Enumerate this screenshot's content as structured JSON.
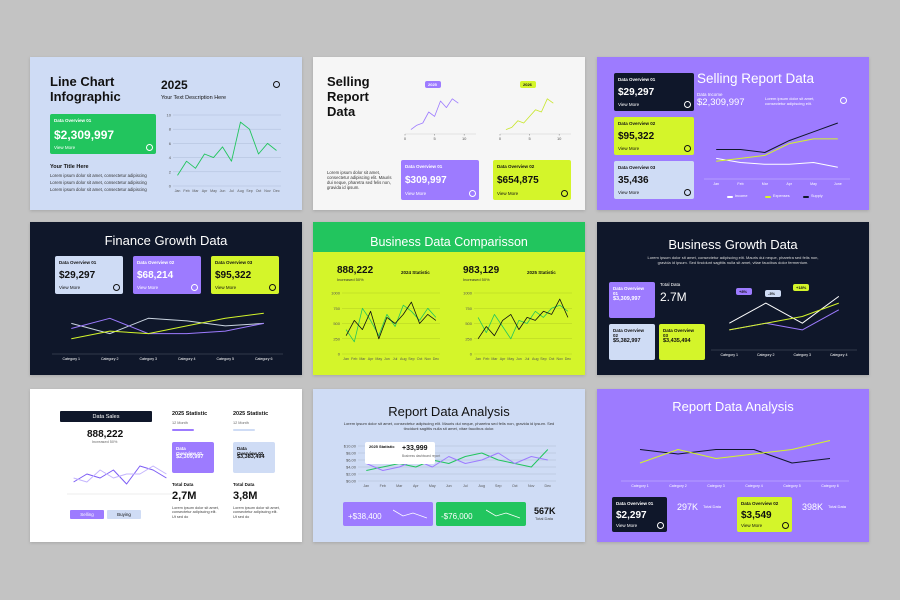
{
  "slides": [
    {
      "title": "Line Chart Infographic",
      "year": "2025",
      "description": "Your Text Description Here",
      "card": {
        "label": "Data Overview 01",
        "value": "$2,309,997",
        "link": "View More"
      },
      "subtitle": "Your Title Here",
      "bullets": [
        "Lorem ipsum dolor sit amet, consectetur adipiscing",
        "Lorem ipsum dolor sit amet, consectetur adipiscing",
        "Lorem ipsum dolor sit amet, consectetur adipiscing"
      ],
      "chart": {
        "type": "line",
        "categories": [
          "Jan",
          "Feb",
          "Mar",
          "Apr",
          "May",
          "Jun",
          "Jul",
          "Aug",
          "Sep",
          "Oct",
          "Nov",
          "Dec"
        ],
        "ylim": [
          0,
          10
        ],
        "yticks": [
          0,
          2,
          4,
          6,
          8,
          10
        ],
        "grid": true,
        "series": [
          {
            "color": "#22c55e",
            "values": [
              1.5,
              3.5,
              2.5,
              4.5,
              4,
              5.5,
              3.5,
              9,
              8,
              4.5,
              6,
              5
            ]
          }
        ]
      }
    },
    {
      "title": "Selling Report Data",
      "paragraph": "Lorem ipsum dolor sit amet, consectetur adipiscing elit. Mauris dui neque, pharetra sed felis non, gravida id ipsum.",
      "chart1": {
        "type": "line",
        "label": "2025",
        "x": [
          1,
          2,
          3,
          4,
          5,
          6,
          7,
          8,
          9
        ],
        "xlim": [
          0,
          12
        ],
        "xticks": [
          0,
          5,
          10
        ],
        "ylim": [
          0,
          10
        ],
        "series": [
          {
            "color": "#9d7bff",
            "values": [
              1,
              2,
              2.5,
              5,
              4,
              7.5,
              6,
              8,
              7
            ]
          }
        ]
      },
      "chart2": {
        "type": "line",
        "label": "2026",
        "x": [
          1,
          2,
          3,
          4,
          5,
          6,
          7,
          8,
          9
        ],
        "xlim": [
          0,
          12
        ],
        "xticks": [
          0,
          5,
          10
        ],
        "ylim": [
          0,
          10
        ],
        "series": [
          {
            "color": "#c8e62a",
            "values": [
              1,
              1.5,
              3,
              2.5,
              4,
              5.5,
              5,
              8,
              7
            ]
          }
        ]
      },
      "cards": [
        {
          "label": "Data Overview 01",
          "value": "$309,997",
          "link": "View More"
        },
        {
          "label": "Data Overview 02",
          "value": "$654,875",
          "link": "View More"
        }
      ]
    },
    {
      "cards": [
        {
          "label": "Data Overview 01",
          "value": "$29,297",
          "link": "View More"
        },
        {
          "label": "Data Overview 02",
          "value": "$95,322",
          "link": "View More"
        },
        {
          "label": "Data Overview 03",
          "value": "35,436",
          "link": "View More"
        }
      ],
      "title": "Selling Report Data",
      "income_label": "Data Income",
      "income": "$2,309,997",
      "paragraph": "Lorem ipsum dolor sit amet, consectetur adipiscing elit.",
      "chart": {
        "type": "line",
        "categories": [
          "Jan",
          "Feb",
          "Mar",
          "Apr",
          "May",
          "June"
        ],
        "ylim": [
          0,
          10
        ],
        "series": [
          {
            "name": "Income",
            "color": "#ffffff",
            "values": [
              3.5,
              2.8,
              2.5,
              2.5,
              2.8,
              2
            ]
          },
          {
            "name": "Expenses",
            "color": "#d4f52a",
            "values": [
              3,
              3.5,
              4,
              6,
              6.8,
              6.8
            ]
          },
          {
            "name": "Supply",
            "color": "#0f172a",
            "values": [
              5,
              5,
              4.5,
              6.5,
              8,
              9.5
            ]
          }
        ]
      }
    },
    {
      "title": "Finance Growth Data",
      "cards": [
        {
          "label": "Data Overview 01",
          "value": "$29,297",
          "link": "View More"
        },
        {
          "label": "Data Overview 02",
          "value": "$68,214",
          "link": "View More"
        },
        {
          "label": "Data Overview 03",
          "value": "$95,322",
          "link": "View More"
        }
      ],
      "chart": {
        "type": "line",
        "categories": [
          "Category 1",
          "Category 2",
          "Category 3",
          "Category 4",
          "Category 5",
          "Category 6"
        ],
        "ylim": [
          0,
          10
        ],
        "series": [
          {
            "color": "#cbd5e1",
            "values": [
              6,
              4,
              7,
              6.5,
              5.5,
              6
            ]
          },
          {
            "color": "#9d7bff",
            "values": [
              5,
              7,
              4,
              4,
              4.5,
              6
            ]
          },
          {
            "color": "#d4f52a",
            "values": [
              3,
              4.5,
              4,
              5.5,
              7,
              8
            ]
          }
        ]
      }
    },
    {
      "title": "Business Data Comparisson",
      "stats": [
        {
          "value": "888,222",
          "label": "2024 Statistic",
          "change": "Increased 50%"
        },
        {
          "value": "983,129",
          "label": "2025 Statistic",
          "change": "Increased 50%"
        }
      ],
      "chart1": {
        "type": "line",
        "categories": [
          "Jan",
          "Feb",
          "Mar",
          "Apr",
          "May",
          "Jun",
          "Jul",
          "Aug",
          "Sep",
          "Oct",
          "Nov",
          "Dec"
        ],
        "ylim": [
          0,
          1000
        ],
        "yticks": [
          0,
          250,
          500,
          750,
          1000
        ],
        "grid": true,
        "series": [
          {
            "color": "#22c55e",
            "values": [
              400,
              200,
              750,
              550,
              300,
              650,
              450,
              800,
              700,
              550,
              750,
              600
            ]
          },
          {
            "color": "#111111",
            "values": [
              300,
              550,
              400,
              700,
              250,
              600,
              500,
              650,
              850,
              500,
              650,
              550
            ]
          }
        ]
      },
      "chart2": {
        "type": "line",
        "categories": [
          "Jan",
          "Feb",
          "Mar",
          "Apr",
          "May",
          "Jun",
          "Jul",
          "Aug",
          "Sep",
          "Oct",
          "Nov",
          "Dec"
        ],
        "ylim": [
          0,
          1000
        ],
        "yticks": [
          0,
          250,
          500,
          750,
          1000
        ],
        "grid": true,
        "series": [
          {
            "color": "#22c55e",
            "values": [
              600,
              350,
              650,
              450,
              250,
              550,
              500,
              700,
              600,
              750,
              800,
              700
            ]
          },
          {
            "color": "#111111",
            "values": [
              250,
              450,
              300,
              550,
              650,
              400,
              600,
              550,
              700,
              650,
              900,
              600
            ]
          }
        ]
      }
    },
    {
      "title": "Business Growth Data",
      "paragraph": "Lorem ipsum dolor sit amet, consectetur adipiscing elit. Mauris dui neque, pharetra sed felis non, gravida id ipsum. Sed tincidunt sagittis nulla sit amet, vitae faucibus dolor fermentum.",
      "cards": [
        {
          "label": "Data Overview 01",
          "value": "$3,309,997"
        },
        {
          "label": "Data Overview 02",
          "value": "$5,382,997"
        },
        {
          "label": "Data Overview 03",
          "value": "$3,435,494"
        }
      ],
      "total_label": "Total Data",
      "total": "2.7M",
      "annotations": [
        "+8%",
        "-3%",
        "+18%"
      ],
      "chart": {
        "type": "line",
        "categories": [
          "Category 1",
          "Category 2",
          "Category 3",
          "Category 4"
        ],
        "ylim": [
          0,
          10
        ],
        "series": [
          {
            "color": "#ffffff",
            "values": [
              4,
              7,
              4,
              8
            ]
          },
          {
            "color": "#9d7bff",
            "values": [
              3,
              4,
              3,
              6
            ]
          },
          {
            "color": "#d4f52a",
            "values": [
              3,
              4,
              5,
              7
            ]
          }
        ]
      }
    },
    {
      "header": "Data Sales",
      "value": "888,222",
      "change": "Increased 50%",
      "buttons": [
        "Selling",
        "Buying"
      ],
      "stats": [
        {
          "title": "2025 Statistic",
          "period": "12 Month",
          "card": {
            "label": "Data Overview 01",
            "value": "$2,309,997"
          },
          "total_label": "Total Data",
          "total": "2,7M",
          "paragraph": "Lorem ipsum dolor sit amet, consectetur adipiscing elit. Ut sed do"
        },
        {
          "title": "2025 Statistic",
          "period": "12 Month",
          "card": {
            "label": "Data Overview 02",
            "value": "$3,383,494"
          },
          "total_label": "Total Data",
          "total": "3,8M",
          "paragraph": "Lorem ipsum dolor sit amet, consectetur adipiscing elit. Ut sed do"
        }
      ],
      "chart": {
        "type": "line",
        "categories": [
          null,
          null,
          null,
          null,
          null,
          null,
          null,
          null
        ],
        "ylim": [
          0,
          10
        ],
        "series": [
          {
            "color": "#7c5cf5",
            "values": [
              3,
              5,
              4,
              6,
              2.5,
              7,
              6,
              4
            ]
          },
          {
            "color": "#c4b5fd",
            "values": [
              4,
              3,
              6,
              4,
              5,
              5,
              7,
              5
            ]
          }
        ]
      }
    },
    {
      "title": "Report Data Analysis",
      "paragraph": "Lorem ipsum dolor sit amet, consectetur adipiscing elit. Mauris dui neque, pharetra sed felis non, gravida id ipsum. Sed tincidunt sagittis nulla sit amet, vitae faucibus dolor.",
      "popup": {
        "title": "2025 Statistic",
        "value": "+33,999",
        "note": "Business dashboard report"
      },
      "chart": {
        "type": "line",
        "categories": [
          "Jan",
          "Feb",
          "Mar",
          "Apr",
          "May",
          "Jun",
          "Jul",
          "Aug",
          "Sep",
          "Oct",
          "Nov",
          "Dec"
        ],
        "ylim": [
          0,
          10
        ],
        "grid": true,
        "yticks": [
          {
            "value": 0,
            "label": "$0,00"
          },
          {
            "value": 2,
            "label": "$2,00"
          },
          {
            "value": 4,
            "label": "$4,00"
          },
          {
            "value": 6,
            "label": "$6,00"
          },
          {
            "value": 8,
            "label": "$8,00"
          },
          {
            "value": 10,
            "label": "$10,00"
          }
        ],
        "series": [
          {
            "color": "#22c55e",
            "values": [
              3,
              4,
              5,
              4,
              6,
              5,
              7,
              8,
              6,
              5,
              4,
              9
            ]
          },
          {
            "color": "#9d7bff",
            "values": [
              5,
              3,
              4,
              6,
              4,
              7,
              5,
              6,
              8,
              5,
              7,
              6
            ]
          }
        ]
      },
      "cards": [
        "+$38,400",
        "-$76,000"
      ],
      "total": "567K",
      "total_label": "Total Data"
    },
    {
      "title": "Report Data Analysis",
      "chart": {
        "type": "line",
        "categories": [
          "Category 1",
          "Category 2",
          "Category 3",
          "Category 4",
          "Category 5",
          "Category 6"
        ],
        "ylim": [
          0,
          10
        ],
        "series": [
          {
            "color": "#0f172a",
            "values": [
              7,
              6,
              7,
              7,
              4,
              5
            ]
          },
          {
            "color": "#d4f52a",
            "values": [
              4,
              7,
              5,
              6,
              7,
              9
            ]
          }
        ]
      },
      "cards": [
        {
          "label": "Data Overview 01",
          "value": "$2,297",
          "link": "View More",
          "total": "297K",
          "total_label": "Total Data"
        },
        {
          "label": "Data Overview 02",
          "value": "$3,549",
          "link": "View More",
          "total": "398K",
          "total_label": "Total Data"
        }
      ]
    }
  ]
}
